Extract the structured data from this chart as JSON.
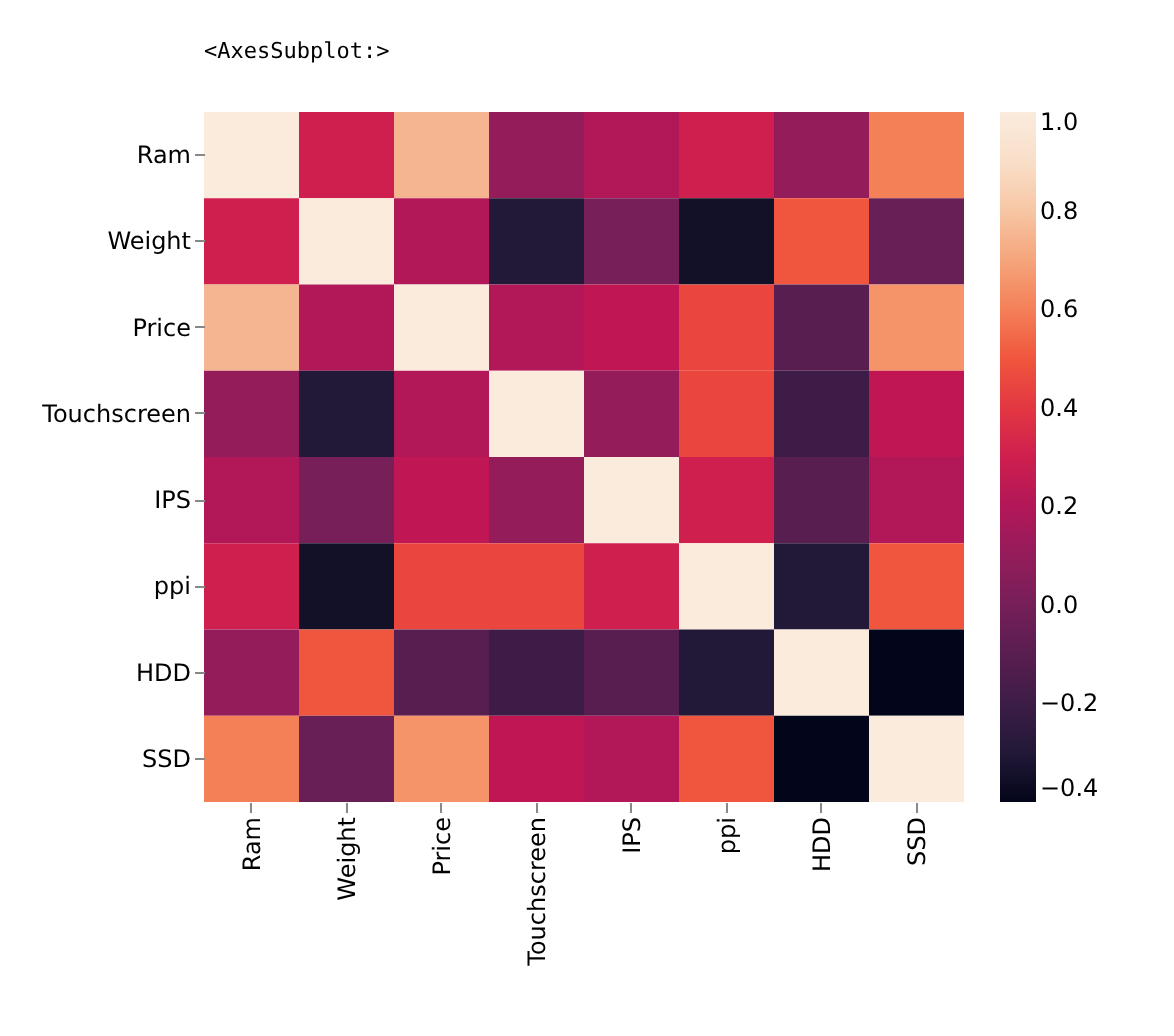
{
  "chart_data": {
    "type": "heatmap",
    "annotations": [
      "<AxesSubplot:>"
    ],
    "categories": [
      "Ram",
      "Weight",
      "Price",
      "Touchscreen",
      "IPS",
      "ppi",
      "HDD",
      "SSD"
    ],
    "y_categories": [
      "Ram",
      "Weight",
      "Price",
      "Touchscreen",
      "IPS",
      "ppi",
      "HDD",
      "SSD"
    ],
    "cells": [
      [
        1.0,
        0.3,
        0.75,
        0.1,
        0.2,
        0.3,
        0.1,
        0.6
      ],
      [
        0.3,
        1.0,
        0.2,
        -0.3,
        0.0,
        -0.35,
        0.5,
        -0.05
      ],
      [
        0.75,
        0.2,
        1.0,
        0.2,
        0.25,
        0.45,
        -0.1,
        0.65
      ],
      [
        0.1,
        -0.3,
        0.2,
        1.0,
        0.1,
        0.45,
        -0.2,
        0.25
      ],
      [
        0.2,
        0.0,
        0.25,
        0.1,
        1.0,
        0.3,
        -0.1,
        0.2
      ],
      [
        0.3,
        -0.35,
        0.45,
        0.45,
        0.3,
        1.0,
        -0.3,
        0.5
      ],
      [
        0.1,
        0.5,
        -0.1,
        -0.2,
        -0.1,
        -0.3,
        1.0,
        -0.4
      ],
      [
        0.6,
        -0.05,
        0.65,
        0.25,
        0.2,
        0.5,
        -0.4,
        1.0
      ]
    ],
    "clim": [
      -0.4,
      1.0
    ],
    "cticks": [
      -0.4,
      -0.2,
      {
        "value": 0,
        "label": "0.0"
      },
      0.2,
      0.4,
      0.6,
      0.8,
      {
        "value": 1,
        "label": "1.0"
      }
    ]
  }
}
